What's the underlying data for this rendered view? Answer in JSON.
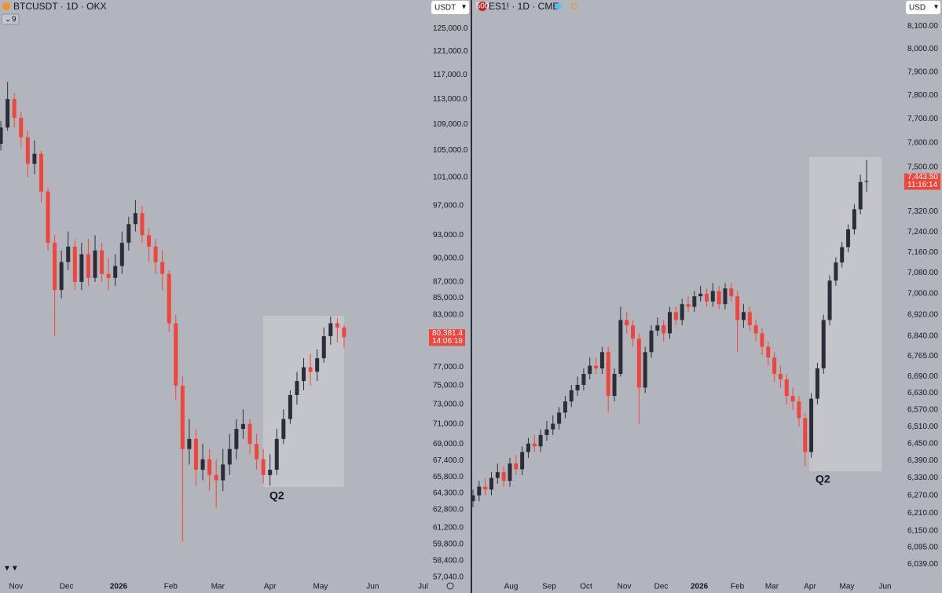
{
  "chart_data": [
    {
      "type": "candlestick",
      "title": "BTCUSDT · 1D · OKX",
      "currency": "USDT",
      "collapsed_indicators": "9",
      "annotation": "Q2",
      "last_price_label": "80,381.4",
      "countdown": "14:06:18",
      "up_color": "#2a2e39",
      "down_color": "#f0453a",
      "log_scale": true,
      "grid": false,
      "x": [
        -9,
        -5,
        -1,
        3,
        7,
        11,
        15,
        19,
        23,
        27,
        31,
        35,
        39,
        43,
        47,
        51,
        55,
        59,
        63,
        67,
        71,
        75,
        79,
        83,
        87,
        91,
        95,
        99,
        103,
        107,
        111,
        115,
        119,
        123,
        127,
        131,
        135,
        139,
        143,
        147,
        151,
        155,
        159,
        163,
        167,
        171,
        175,
        179,
        183,
        187,
        191,
        195
      ],
      "open": [
        106000,
        108500,
        113000,
        110000,
        107000,
        103000,
        104500,
        99000,
        92000,
        86000,
        89500,
        91500,
        87000,
        90500,
        87500,
        91000,
        88000,
        87500,
        89000,
        92000,
        94500,
        96000,
        93000,
        91500,
        89500,
        88000,
        82000,
        75000,
        68500,
        69500,
        66500,
        67500,
        66000,
        65500,
        67000,
        68500,
        70500,
        71000,
        69000,
        67500,
        66000,
        66500,
        69500,
        71500,
        74000,
        75500,
        77000,
        76500,
        78000,
        80500,
        82000,
        81500
      ],
      "high": [
        109500,
        115800,
        114000,
        111000,
        108000,
        106500,
        105000,
        99500,
        93000,
        91000,
        93500,
        92500,
        92000,
        92500,
        93000,
        92000,
        90000,
        90500,
        93500,
        95500,
        97800,
        97000,
        94000,
        92500,
        91000,
        88500,
        83000,
        76000,
        71500,
        70500,
        69000,
        68500,
        67500,
        68500,
        70000,
        71500,
        72500,
        71500,
        70000,
        68500,
        68000,
        70500,
        72500,
        74500,
        76500,
        78000,
        78500,
        79000,
        81500,
        82800,
        82600,
        81800
      ],
      "low": [
        105000,
        108000,
        108500,
        105500,
        101000,
        101500,
        97500,
        91000,
        80500,
        85000,
        88500,
        86000,
        86000,
        86500,
        87000,
        87000,
        86000,
        86500,
        88000,
        91000,
        93500,
        92000,
        89500,
        88000,
        86000,
        81000,
        73500,
        60000,
        67000,
        65000,
        65500,
        64500,
        63000,
        64500,
        66000,
        67500,
        69500,
        68000,
        66500,
        65200,
        65000,
        66000,
        69000,
        71000,
        73000,
        74500,
        75000,
        75500,
        77500,
        79500,
        79800,
        79200
      ],
      "close": [
        108500,
        113000,
        110000,
        107000,
        103000,
        104500,
        99000,
        92000,
        86000,
        89500,
        91500,
        87000,
        90500,
        87500,
        91000,
        88000,
        87500,
        89000,
        92000,
        94500,
        96000,
        93000,
        91500,
        89500,
        88000,
        82000,
        75000,
        68500,
        69500,
        66500,
        67500,
        66000,
        65500,
        67000,
        68500,
        70500,
        71000,
        69000,
        67500,
        66000,
        66500,
        69500,
        71500,
        74000,
        75500,
        77000,
        76500,
        78000,
        80500,
        82000,
        81500,
        80381.4
      ],
      "xlim": [
        -9.5,
        245
      ],
      "xticks": [
        {
          "value": 0,
          "label": "Nov"
        },
        {
          "value": 30,
          "label": "Dec"
        },
        {
          "value": 61,
          "label": "2026"
        },
        {
          "value": 92,
          "label": "Feb"
        },
        {
          "value": 120,
          "label": "Mar"
        },
        {
          "value": 151,
          "label": "Apr"
        },
        {
          "value": 181,
          "label": "May"
        },
        {
          "value": 212,
          "label": "Jun"
        },
        {
          "value": 242,
          "label": "Jul"
        }
      ],
      "ylim": [
        56700,
        130200
      ],
      "yticks": [
        {
          "value": 125000,
          "label": "125,000.0"
        },
        {
          "value": 121000,
          "label": "121,000.0"
        },
        {
          "value": 117000,
          "label": "117,000.0"
        },
        {
          "value": 113000,
          "label": "113,000.0"
        },
        {
          "value": 109000,
          "label": "109,000.0"
        },
        {
          "value": 105000,
          "label": "105,000.0"
        },
        {
          "value": 101000,
          "label": "101,000.0"
        },
        {
          "value": 97000,
          "label": "97,000.0"
        },
        {
          "value": 93000,
          "label": "93,000.0"
        },
        {
          "value": 90000,
          "label": "90,000.0"
        },
        {
          "value": 87000,
          "label": "87,000.0"
        },
        {
          "value": 85000,
          "label": "85,000.0"
        },
        {
          "value": 83000,
          "label": "83,000.0"
        },
        {
          "value": 77000,
          "label": "77,000.0"
        },
        {
          "value": 75000,
          "label": "75,000.0"
        },
        {
          "value": 73000,
          "label": "73,000.0"
        },
        {
          "value": 71000,
          "label": "71,000.0"
        },
        {
          "value": 69000,
          "label": "69,000.0"
        },
        {
          "value": 67400,
          "label": "67,400.0"
        },
        {
          "value": 65800,
          "label": "65,800.0"
        },
        {
          "value": 64300,
          "label": "64,300.0"
        },
        {
          "value": 62800,
          "label": "62,800.0"
        },
        {
          "value": 61200,
          "label": "61,200.0"
        },
        {
          "value": 59800,
          "label": "59,800.0"
        },
        {
          "value": 58400,
          "label": "58,400.0"
        },
        {
          "value": 57040,
          "label": "57,040.0"
        }
      ]
    },
    {
      "type": "candlestick",
      "title": "ES1! · 1D · CME",
      "currency": "USD",
      "symbol_icon": "500",
      "annotation": "Q2",
      "last_price_label": "7,443.50",
      "countdown": "11:16:14",
      "up_color": "#2a2e39",
      "down_color": "#f0453a",
      "log_scale": true,
      "grid": false,
      "x": [
        -31,
        -26,
        -21,
        -16,
        -11,
        -6,
        -1,
        4,
        9,
        14,
        19,
        24,
        29,
        34,
        39,
        44,
        49,
        54,
        59,
        64,
        69,
        74,
        79,
        84,
        89,
        94,
        99,
        104,
        109,
        114,
        119,
        124,
        129,
        134,
        139,
        144,
        149,
        154,
        159,
        164,
        169,
        174,
        179,
        184,
        189,
        194,
        199,
        204,
        209,
        214,
        219,
        224,
        229,
        234,
        239,
        244,
        249,
        254,
        259,
        264,
        269,
        274,
        279,
        284,
        289
      ],
      "open": [
        6250,
        6270,
        6300,
        6290,
        6330,
        6350,
        6320,
        6380,
        6360,
        6420,
        6450,
        6440,
        6480,
        6500,
        6520,
        6560,
        6600,
        6640,
        6660,
        6700,
        6730,
        6720,
        6780,
        6620,
        6700,
        6900,
        6880,
        6830,
        6650,
        6780,
        6860,
        6880,
        6850,
        6930,
        6900,
        6960,
        6950,
        6990,
        7000,
        6970,
        7010,
        6960,
        7020,
        6990,
        6900,
        6930,
        6880,
        6850,
        6800,
        6760,
        6700,
        6680,
        6620,
        6600,
        6540,
        6420,
        6610,
        6720,
        6900,
        7050,
        7120,
        7180,
        7250,
        7330,
        7440
      ],
      "high": [
        6290,
        6320,
        6330,
        6350,
        6380,
        6370,
        6400,
        6410,
        6440,
        6470,
        6480,
        6500,
        6530,
        6550,
        6580,
        6620,
        6660,
        6690,
        6720,
        6760,
        6760,
        6800,
        6800,
        6720,
        6950,
        6930,
        6900,
        6850,
        6800,
        6880,
        6910,
        6900,
        6950,
        6950,
        6980,
        6990,
        7010,
        7030,
        7020,
        7040,
        7030,
        7040,
        7040,
        7010,
        6960,
        6950,
        6900,
        6870,
        6820,
        6780,
        6730,
        6700,
        6650,
        6620,
        6560,
        6630,
        6740,
        6920,
        7070,
        7140,
        7200,
        7270,
        7350,
        7470,
        7530
      ],
      "low": [
        6230,
        6250,
        6270,
        6270,
        6310,
        6300,
        6300,
        6340,
        6340,
        6400,
        6420,
        6420,
        6460,
        6480,
        6500,
        6540,
        6580,
        6620,
        6640,
        6680,
        6700,
        6700,
        6560,
        6600,
        6690,
        6850,
        6800,
        6520,
        6630,
        6760,
        6840,
        6820,
        6830,
        6880,
        6880,
        6930,
        6930,
        6970,
        6950,
        6950,
        6940,
        6940,
        6970,
        6780,
        6870,
        6860,
        6820,
        6770,
        6730,
        6670,
        6650,
        6590,
        6570,
        6510,
        6370,
        6400,
        6590,
        6700,
        6880,
        7030,
        7100,
        7160,
        7230,
        7310,
        7400
      ],
      "close": [
        6270,
        6300,
        6290,
        6330,
        6350,
        6320,
        6380,
        6360,
        6420,
        6450,
        6440,
        6480,
        6500,
        6520,
        6560,
        6600,
        6640,
        6660,
        6700,
        6730,
        6720,
        6780,
        6620,
        6700,
        6900,
        6880,
        6830,
        6650,
        6780,
        6860,
        6880,
        6850,
        6930,
        6900,
        6960,
        6950,
        6990,
        7000,
        6970,
        7010,
        6960,
        7020,
        6990,
        6900,
        6930,
        6880,
        6850,
        6800,
        6760,
        6700,
        6680,
        6620,
        6600,
        6540,
        6420,
        6610,
        6720,
        6900,
        7050,
        7120,
        7180,
        7250,
        7330,
        7440,
        7443.5
      ],
      "xlim": [
        -31,
        319
      ],
      "xticks": [
        {
          "value": 0,
          "label": "Aug"
        },
        {
          "value": 31,
          "label": "Sep"
        },
        {
          "value": 61,
          "label": "Oct"
        },
        {
          "value": 92,
          "label": "Nov"
        },
        {
          "value": 122,
          "label": "Dec"
        },
        {
          "value": 153,
          "label": "2026"
        },
        {
          "value": 184,
          "label": "Feb"
        },
        {
          "value": 212,
          "label": "Mar"
        },
        {
          "value": 243,
          "label": "Apr"
        },
        {
          "value": 273,
          "label": "May"
        },
        {
          "value": 304,
          "label": "Jun"
        }
      ],
      "ylim": [
        5983,
        8217
      ],
      "yticks": [
        {
          "value": 8100,
          "label": "8,100.00"
        },
        {
          "value": 8000,
          "label": "8,000.00"
        },
        {
          "value": 7900,
          "label": "7,900.00"
        },
        {
          "value": 7800,
          "label": "7,800.00"
        },
        {
          "value": 7700,
          "label": "7,700.00"
        },
        {
          "value": 7600,
          "label": "7,600.00"
        },
        {
          "value": 7500,
          "label": "7,500.00"
        },
        {
          "value": 7320,
          "label": "7,320.00"
        },
        {
          "value": 7240,
          "label": "7,240.00"
        },
        {
          "value": 7160,
          "label": "7,160.00"
        },
        {
          "value": 7080,
          "label": "7,080.00"
        },
        {
          "value": 7000,
          "label": "7,000.00"
        },
        {
          "value": 6920,
          "label": "6,920.00"
        },
        {
          "value": 6840,
          "label": "6,840.00"
        },
        {
          "value": 6765,
          "label": "6,765.00"
        },
        {
          "value": 6690,
          "label": "6,690.00"
        },
        {
          "value": 6630,
          "label": "6,630.00"
        },
        {
          "value": 6570,
          "label": "6,570.00"
        },
        {
          "value": 6510,
          "label": "6,510.00"
        },
        {
          "value": 6450,
          "label": "6,450.00"
        },
        {
          "value": 6390,
          "label": "6,390.00"
        },
        {
          "value": 6330,
          "label": "6,330.00"
        },
        {
          "value": 6270,
          "label": "6,270.00"
        },
        {
          "value": 6210,
          "label": "6,210.00"
        },
        {
          "value": 6150,
          "label": "6,150.00"
        },
        {
          "value": 6095,
          "label": "6,095.00"
        },
        {
          "value": 6039,
          "label": "6,039.00"
        }
      ]
    }
  ]
}
